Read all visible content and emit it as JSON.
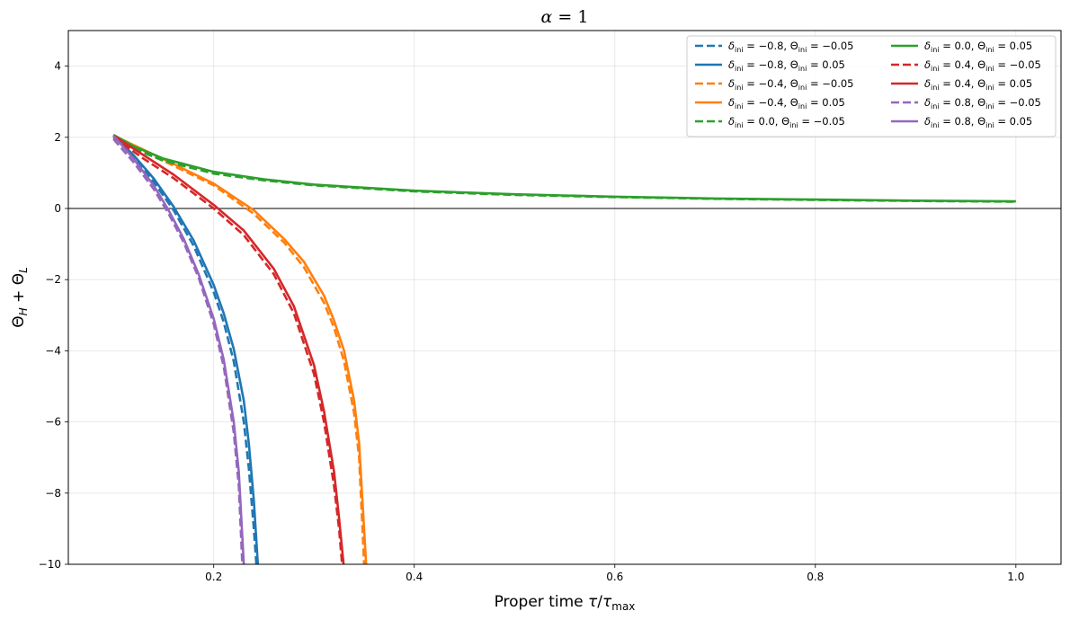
{
  "chart_data": {
    "type": "line",
    "title": "α = 1",
    "xlabel": "Proper time τ/τ_max",
    "ylabel": "Θ_H + Θ_L",
    "xlim": [
      0.055,
      1.045
    ],
    "ylim": [
      -10,
      5
    ],
    "xticks": [
      0.2,
      0.4,
      0.6,
      0.8,
      1.0
    ],
    "xtick_labels": [
      "0.2",
      "0.4",
      "0.6",
      "0.8",
      "1.0"
    ],
    "yticks": [
      -10,
      -8,
      -6,
      -4,
      -2,
      0,
      2,
      4
    ],
    "ytick_labels": [
      "−10",
      "−8",
      "−6",
      "−4",
      "−2",
      "0",
      "2",
      "4"
    ],
    "grid": true,
    "legend_position": "top-right",
    "legend_columns": 2,
    "reference_line": {
      "y": 0,
      "color": "#000000"
    },
    "series": [
      {
        "name": "δ_ini = −0.8, Θ_ini = −0.05",
        "delta": "−0.8",
        "theta": "−0.05",
        "color": "#1f77b4",
        "style": "dashed",
        "x": [
          0.1,
          0.12,
          0.14,
          0.16,
          0.18,
          0.2,
          0.21,
          0.22,
          0.23,
          0.235,
          0.24,
          0.2425
        ],
        "y": [
          2.05,
          1.45,
          0.75,
          -0.05,
          -1.05,
          -2.35,
          -3.2,
          -4.3,
          -6.0,
          -7.3,
          -9.0,
          -10.0
        ]
      },
      {
        "name": "δ_ini = −0.8, Θ_ini = 0.05",
        "delta": "−0.8",
        "theta": "0.05",
        "color": "#1f77b4",
        "style": "solid",
        "x": [
          0.1,
          0.12,
          0.14,
          0.16,
          0.18,
          0.2,
          0.21,
          0.22,
          0.23,
          0.235,
          0.24,
          0.244
        ],
        "y": [
          2.05,
          1.5,
          0.85,
          0.05,
          -0.9,
          -2.15,
          -2.95,
          -3.95,
          -5.4,
          -6.6,
          -8.2,
          -10.0
        ]
      },
      {
        "name": "δ_ini = −0.4, Θ_ini = −0.05",
        "delta": "−0.4",
        "theta": "−0.05",
        "color": "#ff7f0e",
        "style": "dashed",
        "x": [
          0.1,
          0.13,
          0.16,
          0.2,
          0.24,
          0.27,
          0.29,
          0.31,
          0.32,
          0.33,
          0.34,
          0.345,
          0.35
        ],
        "y": [
          2.05,
          1.6,
          1.2,
          0.65,
          -0.15,
          -0.95,
          -1.65,
          -2.65,
          -3.35,
          -4.3,
          -5.75,
          -7.0,
          -10.0
        ]
      },
      {
        "name": "δ_ini = −0.4, Θ_ini = 0.05",
        "delta": "−0.4",
        "theta": "0.05",
        "color": "#ff7f0e",
        "style": "solid",
        "x": [
          0.1,
          0.13,
          0.16,
          0.2,
          0.24,
          0.27,
          0.29,
          0.31,
          0.32,
          0.33,
          0.34,
          0.345,
          0.352
        ],
        "y": [
          2.05,
          1.65,
          1.25,
          0.7,
          -0.05,
          -0.85,
          -1.5,
          -2.45,
          -3.15,
          -4.0,
          -5.4,
          -6.6,
          -10.0
        ]
      },
      {
        "name": "δ_ini = 0.0, Θ_ini = −0.05",
        "delta": "0.0",
        "theta": "−0.05",
        "color": "#2ca02c",
        "style": "dashed",
        "x": [
          0.1,
          0.12,
          0.15,
          0.2,
          0.25,
          0.3,
          0.4,
          0.5,
          0.6,
          0.7,
          0.8,
          0.9,
          1.0
        ],
        "y": [
          2.0,
          1.68,
          1.34,
          0.98,
          0.79,
          0.65,
          0.48,
          0.38,
          0.32,
          0.27,
          0.24,
          0.21,
          0.19
        ]
      },
      {
        "name": "δ_ini = 0.0, Θ_ini = 0.05",
        "delta": "0.0",
        "theta": "0.05",
        "color": "#2ca02c",
        "style": "solid",
        "x": [
          0.1,
          0.12,
          0.15,
          0.2,
          0.25,
          0.3,
          0.4,
          0.5,
          0.6,
          0.7,
          0.8,
          0.9,
          1.0
        ],
        "y": [
          2.07,
          1.75,
          1.4,
          1.03,
          0.82,
          0.67,
          0.5,
          0.4,
          0.33,
          0.28,
          0.25,
          0.22,
          0.2
        ]
      },
      {
        "name": "δ_ini = 0.4, Θ_ini = −0.05",
        "delta": "0.4",
        "theta": "−0.05",
        "color": "#d62728",
        "style": "dashed",
        "x": [
          0.1,
          0.13,
          0.16,
          0.2,
          0.23,
          0.26,
          0.28,
          0.3,
          0.31,
          0.32,
          0.325,
          0.328
        ],
        "y": [
          2.0,
          1.4,
          0.85,
          0.0,
          -0.75,
          -1.85,
          -2.95,
          -4.65,
          -6.0,
          -7.8,
          -9.0,
          -10.0
        ]
      },
      {
        "name": "δ_ini = 0.4, Θ_ini = 0.05",
        "delta": "0.4",
        "theta": "0.05",
        "color": "#d62728",
        "style": "solid",
        "x": [
          0.1,
          0.13,
          0.16,
          0.2,
          0.23,
          0.26,
          0.28,
          0.3,
          0.31,
          0.32,
          0.325,
          0.3295
        ],
        "y": [
          2.05,
          1.5,
          0.95,
          0.1,
          -0.62,
          -1.7,
          -2.75,
          -4.4,
          -5.7,
          -7.4,
          -8.7,
          -10.0
        ]
      },
      {
        "name": "δ_ini = 0.8, Θ_ini = −0.05",
        "delta": "0.8",
        "theta": "−0.05",
        "color": "#9467bd",
        "style": "dashed",
        "x": [
          0.1,
          0.12,
          0.14,
          0.155,
          0.17,
          0.185,
          0.2,
          0.21,
          0.22,
          0.225,
          0.2285
        ],
        "y": [
          1.95,
          1.3,
          0.55,
          -0.15,
          -0.95,
          -1.95,
          -3.25,
          -4.45,
          -6.3,
          -7.8,
          -10.0
        ]
      },
      {
        "name": "δ_ini = 0.8, Θ_ini = 0.05",
        "delta": "0.8",
        "theta": "0.05",
        "color": "#9467bd",
        "style": "solid",
        "x": [
          0.1,
          0.12,
          0.14,
          0.155,
          0.17,
          0.185,
          0.2,
          0.21,
          0.22,
          0.225,
          0.23
        ],
        "y": [
          2.05,
          1.4,
          0.65,
          -0.05,
          -0.85,
          -1.85,
          -3.1,
          -4.25,
          -6.0,
          -7.4,
          -10.0
        ]
      }
    ]
  }
}
